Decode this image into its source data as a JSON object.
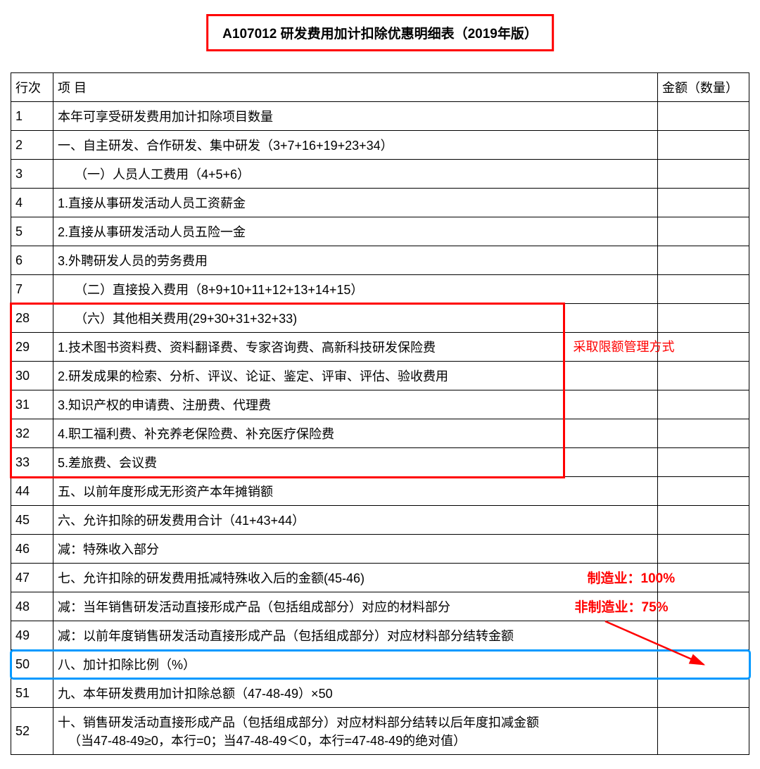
{
  "title": "A107012 研发费用加计扣除优惠明细表（2019年版）",
  "headers": {
    "row_num": "行次",
    "item": "项    目",
    "amount": "金额（数量）"
  },
  "rows": [
    {
      "num": "1",
      "item": "本年可享受研发费用加计扣除项目数量",
      "indent": 0
    },
    {
      "num": "2",
      "item": "一、自主研发、合作研发、集中研发（3+7+16+19+23+34）",
      "indent": 0
    },
    {
      "num": "3",
      "item": "（一）人员人工费用（4+5+6）",
      "indent": 1
    },
    {
      "num": "4",
      "item": "1.直接从事研发活动人员工资薪金",
      "indent": 0
    },
    {
      "num": "5",
      "item": "2.直接从事研发活动人员五险一金",
      "indent": 0
    },
    {
      "num": "6",
      "item": "3.外聘研发人员的劳务费用",
      "indent": 0
    },
    {
      "num": "7",
      "item": "（二）直接投入费用（8+9+10+11+12+13+14+15）",
      "indent": 1
    },
    {
      "num": "28",
      "item": "（六）其他相关费用(29+30+31+32+33)",
      "indent": 1
    },
    {
      "num": "29",
      "item": "1.技术图书资料费、资料翻译费、专家咨询费、高新科技研发保险费",
      "indent": 0
    },
    {
      "num": "30",
      "item": "2.研发成果的检索、分析、评议、论证、鉴定、评审、评估、验收费用",
      "indent": 0
    },
    {
      "num": "31",
      "item": "3.知识产权的申请费、注册费、代理费",
      "indent": 0
    },
    {
      "num": "32",
      "item": "4.职工福利费、补充养老保险费、补充医疗保险费",
      "indent": 0
    },
    {
      "num": "33",
      "item": "5.差旅费、会议费",
      "indent": 0
    },
    {
      "num": "44",
      "item": "五、以前年度形成无形资产本年摊销额",
      "indent": 0
    },
    {
      "num": "45",
      "item": "六、允许扣除的研发费用合计（41+43+44）",
      "indent": 0
    },
    {
      "num": "46",
      "item": "减：特殊收入部分",
      "indent": 0
    },
    {
      "num": "47",
      "item": "七、允许扣除的研发费用抵减特殊收入后的金额(45-46)",
      "indent": 0
    },
    {
      "num": "48",
      "item": "减：当年销售研发活动直接形成产品（包括组成部分）对应的材料部分",
      "indent": 0
    },
    {
      "num": "49",
      "item": "减：以前年度销售研发活动直接形成产品（包括组成部分）对应材料部分结转金额",
      "indent": 0
    },
    {
      "num": "50",
      "item": "八、加计扣除比例（%）",
      "indent": 0
    },
    {
      "num": "51",
      "item": "九、本年研发费用加计扣除总额（47-48-49）×50",
      "indent": 0
    },
    {
      "num": "52",
      "item": "十、销售研发活动直接形成产品（包括组成部分）对应材料部分结转以后年度扣减金额\n（当47-48-49≥0，本行=0；当47-48-49＜0，本行=47-48-49的绝对值）",
      "indent": 0
    }
  ],
  "annotations": {
    "right_red_text": "采取限额管理方式",
    "mfg_label": "制造业：",
    "mfg_value": "100%",
    "nonmfg_label": "非制造业：",
    "nonmfg_value": "75%"
  },
  "colors": {
    "red": "#ff0000",
    "blue": "#0099ff",
    "black": "#000000",
    "white": "#ffffff"
  },
  "layout": {
    "title_border_width": 3,
    "red_box_rows_start": 7,
    "red_box_rows_end": 12,
    "blue_box_row": 19,
    "col_widths": {
      "num": 60,
      "item": "auto",
      "amount": 130
    },
    "font_size_body": 18,
    "font_size_title": 19
  }
}
